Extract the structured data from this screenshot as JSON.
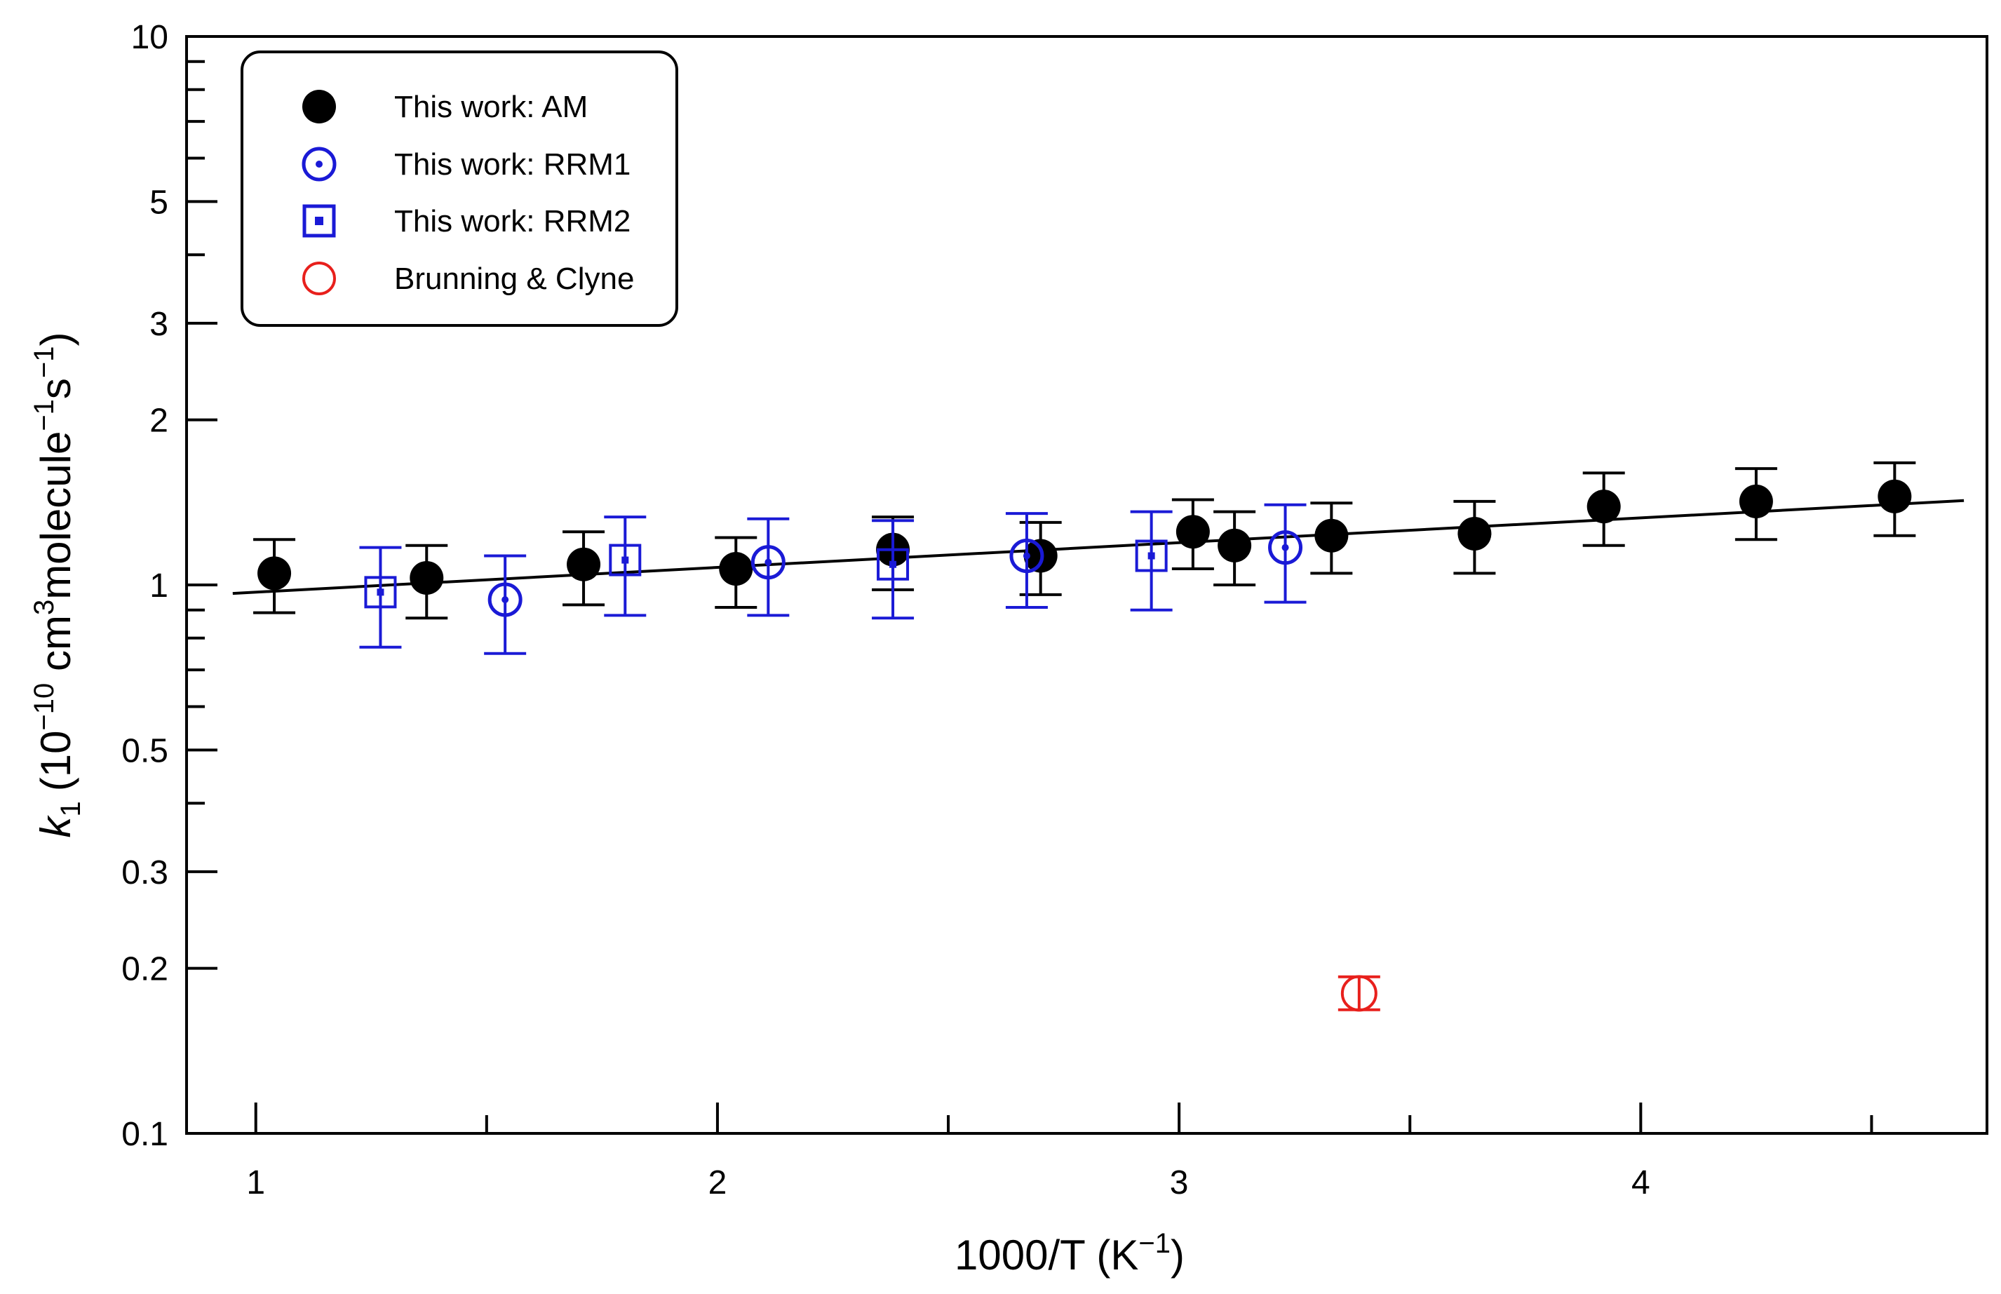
{
  "chart_data": {
    "type": "scatter",
    "title": "",
    "xlabel": "1000/T (K⁻¹)",
    "ylabel": "k₁ (10⁻¹⁰ cm³molecule⁻¹s⁻¹)",
    "ylabel_parts": {
      "symbol": "k",
      "subscript": "1",
      "open": "(10",
      "exp1": "−10",
      "unit_a": " cm",
      "exp2": "3",
      "unit_b": "molecule",
      "exp3": "−1",
      "unit_c": "s",
      "exp4": "−1",
      "close": ")"
    },
    "xlabel_parts": {
      "main": "1000/T (K",
      "exp": "−1",
      "close": ")"
    },
    "x_scale": "linear",
    "y_scale": "log",
    "xlim": [
      0.85,
      4.75
    ],
    "ylim": [
      0.1,
      10
    ],
    "x_major_ticks": [
      1,
      2,
      3,
      4
    ],
    "x_minor_ticks": [
      1.5,
      2.5,
      3.5,
      4.5
    ],
    "x_tick_labels": [
      "1",
      "2",
      "3",
      "4"
    ],
    "y_major_ticks": [
      0.1,
      0.2,
      0.3,
      0.5,
      1,
      2,
      3,
      5,
      10
    ],
    "y_tick_labels": [
      "0.1",
      "0.2",
      "0.3",
      "0.5",
      "1",
      "2",
      "3",
      "5",
      "10"
    ],
    "y_minor_ticks": [
      0.4,
      0.6,
      0.7,
      0.8,
      0.9,
      4,
      6,
      7,
      8,
      9
    ],
    "grid": false,
    "legend_position": "top-left",
    "series": [
      {
        "name": "This work: AM",
        "marker": "filled-circle",
        "color": "#000000",
        "x": [
          1.04,
          1.37,
          1.71,
          2.04,
          2.38,
          2.7,
          3.03,
          3.12,
          3.33,
          3.64,
          3.92,
          4.25,
          4.55
        ],
        "y": [
          1.05,
          1.03,
          1.09,
          1.07,
          1.16,
          1.13,
          1.25,
          1.18,
          1.23,
          1.24,
          1.39,
          1.42,
          1.45
        ],
        "err_low": [
          0.16,
          0.16,
          0.17,
          0.16,
          0.18,
          0.17,
          0.18,
          0.18,
          0.18,
          0.19,
          0.21,
          0.21,
          0.22
        ],
        "err_high": [
          0.16,
          0.15,
          0.16,
          0.15,
          0.17,
          0.17,
          0.18,
          0.18,
          0.18,
          0.18,
          0.21,
          0.21,
          0.22
        ]
      },
      {
        "name": "This work: RRM1",
        "marker": "circle-dot",
        "color": "#1a1ad6",
        "x": [
          1.54,
          2.11,
          2.67,
          3.23
        ],
        "y": [
          0.94,
          1.1,
          1.13,
          1.17
        ],
        "err_low": [
          0.19,
          0.22,
          0.22,
          0.24
        ],
        "err_high": [
          0.19,
          0.22,
          0.22,
          0.23
        ]
      },
      {
        "name": "This work: RRM2",
        "marker": "square-dot",
        "color": "#1a1ad6",
        "x": [
          1.27,
          1.8,
          2.38,
          2.94
        ],
        "y": [
          0.97,
          1.11,
          1.09,
          1.13
        ],
        "err_low": [
          0.2,
          0.23,
          0.22,
          0.23
        ],
        "err_high": [
          0.2,
          0.22,
          0.22,
          0.23
        ]
      },
      {
        "name": "Brunning & Clyne",
        "marker": "open-circle",
        "color": "#e8201c",
        "x": [
          3.39
        ],
        "y": [
          0.18
        ],
        "err_low": [
          0.012
        ],
        "err_high": [
          0.013
        ]
      }
    ],
    "fit_line": {
      "name": "fit",
      "color": "#000000",
      "x": [
        0.95,
        4.7
      ],
      "y": [
        0.965,
        1.425
      ]
    }
  }
}
